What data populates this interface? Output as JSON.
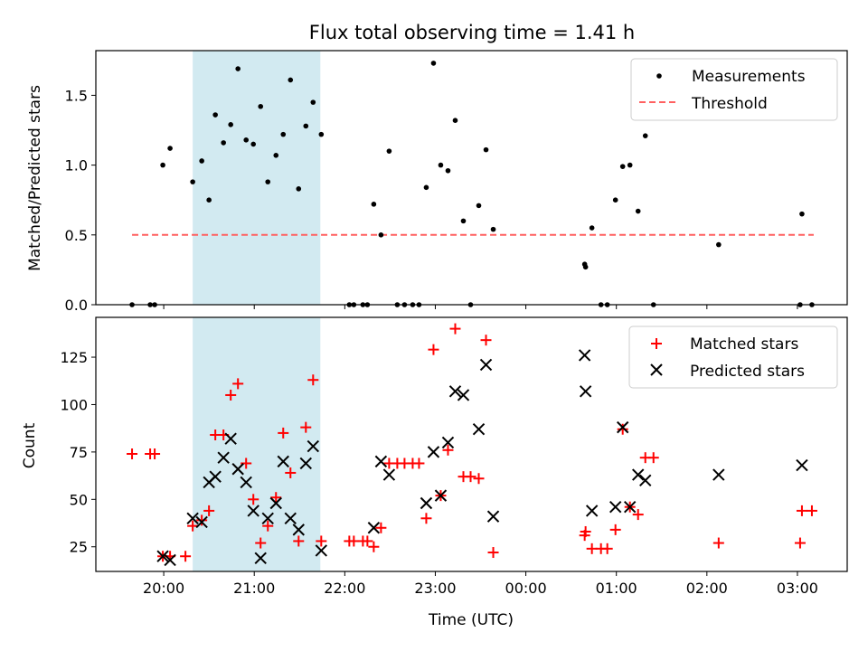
{
  "chart_data": {
    "title": "Flux total observing time = 1.41 h",
    "shaded_region": {
      "x_start_hours": 20.32,
      "x_end_hours": 21.73,
      "color": "#add8e6"
    },
    "x": {
      "label": "Time (UTC)",
      "range_hours": [
        19.25,
        27.55
      ],
      "ticks": [
        {
          "v": 20,
          "label": "20:00"
        },
        {
          "v": 21,
          "label": "21:00"
        },
        {
          "v": 22,
          "label": "22:00"
        },
        {
          "v": 23,
          "label": "23:00"
        },
        {
          "v": 24,
          "label": "00:00"
        },
        {
          "v": 25,
          "label": "01:00"
        },
        {
          "v": 26,
          "label": "02:00"
        },
        {
          "v": 27,
          "label": "03:00"
        }
      ]
    },
    "top": {
      "type": "scatter",
      "ylabel": "Matched/Predicted stars",
      "ylim": [
        0,
        1.82
      ],
      "yticks": [
        {
          "v": 0,
          "label": "0.0"
        },
        {
          "v": 0.5,
          "label": "0.5"
        },
        {
          "v": 1.0,
          "label": "1.0"
        },
        {
          "v": 1.5,
          "label": "1.5"
        }
      ],
      "measurements_label": "Measurements",
      "threshold_label": "Threshold",
      "threshold": {
        "value": 0.5,
        "x_start": 19.65,
        "x_end": 27.18,
        "color": "#ff6060"
      },
      "measurements": [
        [
          19.65,
          0
        ],
        [
          19.85,
          0
        ],
        [
          19.9,
          0
        ],
        [
          19.99,
          1.0
        ],
        [
          20.07,
          1.12
        ],
        [
          20.32,
          0.88
        ],
        [
          20.42,
          1.03
        ],
        [
          20.5,
          0.75
        ],
        [
          20.57,
          1.36
        ],
        [
          20.66,
          1.16
        ],
        [
          20.74,
          1.29
        ],
        [
          20.82,
          1.69
        ],
        [
          20.91,
          1.18
        ],
        [
          20.99,
          1.15
        ],
        [
          21.07,
          1.42
        ],
        [
          21.15,
          0.88
        ],
        [
          21.24,
          1.07
        ],
        [
          21.32,
          1.22
        ],
        [
          21.4,
          1.61
        ],
        [
          21.49,
          0.83
        ],
        [
          21.57,
          1.28
        ],
        [
          21.65,
          1.45
        ],
        [
          21.74,
          1.22
        ],
        [
          22.05,
          0
        ],
        [
          22.1,
          0
        ],
        [
          22.2,
          0
        ],
        [
          22.25,
          0
        ],
        [
          22.32,
          0.72
        ],
        [
          22.4,
          0.5
        ],
        [
          22.49,
          1.1
        ],
        [
          22.58,
          0
        ],
        [
          22.66,
          0
        ],
        [
          22.75,
          0
        ],
        [
          22.82,
          0
        ],
        [
          22.9,
          0.84
        ],
        [
          22.98,
          1.73
        ],
        [
          23.06,
          1.0
        ],
        [
          23.14,
          0.96
        ],
        [
          23.22,
          1.32
        ],
        [
          23.31,
          0.6
        ],
        [
          23.39,
          0
        ],
        [
          23.48,
          0.71
        ],
        [
          23.56,
          1.11
        ],
        [
          23.64,
          0.54
        ],
        [
          24.65,
          0.29
        ],
        [
          24.66,
          0.27
        ],
        [
          24.73,
          0.55
        ],
        [
          24.83,
          0
        ],
        [
          24.9,
          0
        ],
        [
          24.99,
          0.75
        ],
        [
          25.07,
          0.99
        ],
        [
          25.15,
          1.0
        ],
        [
          25.24,
          0.67
        ],
        [
          25.32,
          1.21
        ],
        [
          25.41,
          0
        ],
        [
          26.13,
          0.43
        ],
        [
          27.03,
          0
        ],
        [
          27.05,
          0.65
        ],
        [
          27.16,
          0
        ]
      ]
    },
    "bottom": {
      "type": "scatter",
      "ylabel": "Count",
      "ylim": [
        12,
        146
      ],
      "yticks": [
        {
          "v": 25,
          "label": "25"
        },
        {
          "v": 50,
          "label": "50"
        },
        {
          "v": 75,
          "label": "75"
        },
        {
          "v": 100,
          "label": "100"
        },
        {
          "v": 125,
          "label": "125"
        }
      ],
      "matched_label": "Matched stars",
      "predicted_label": "Predicted stars",
      "matched": [
        [
          19.65,
          74
        ],
        [
          19.85,
          74
        ],
        [
          19.9,
          74
        ],
        [
          19.99,
          20
        ],
        [
          20.07,
          20
        ],
        [
          20.24,
          20
        ],
        [
          20.32,
          36
        ],
        [
          20.42,
          39
        ],
        [
          20.5,
          44
        ],
        [
          20.57,
          84
        ],
        [
          20.66,
          84
        ],
        [
          20.74,
          105
        ],
        [
          20.82,
          111
        ],
        [
          20.91,
          69
        ],
        [
          20.99,
          50
        ],
        [
          21.07,
          27
        ],
        [
          21.15,
          36
        ],
        [
          21.24,
          51
        ],
        [
          21.32,
          85
        ],
        [
          21.4,
          64
        ],
        [
          21.49,
          28
        ],
        [
          21.57,
          88
        ],
        [
          21.65,
          113
        ],
        [
          21.74,
          28
        ],
        [
          22.05,
          28
        ],
        [
          22.1,
          28
        ],
        [
          22.2,
          28
        ],
        [
          22.25,
          28
        ],
        [
          22.32,
          25
        ],
        [
          22.4,
          35
        ],
        [
          22.49,
          69
        ],
        [
          22.58,
          69
        ],
        [
          22.66,
          69
        ],
        [
          22.75,
          69
        ],
        [
          22.82,
          69
        ],
        [
          22.9,
          40
        ],
        [
          22.98,
          129
        ],
        [
          23.06,
          52
        ],
        [
          23.14,
          76
        ],
        [
          23.22,
          140
        ],
        [
          23.31,
          62
        ],
        [
          23.39,
          62
        ],
        [
          23.48,
          61
        ],
        [
          23.56,
          134
        ],
        [
          23.64,
          22
        ],
        [
          24.65,
          31
        ],
        [
          24.66,
          33
        ],
        [
          24.73,
          24
        ],
        [
          24.83,
          24
        ],
        [
          24.9,
          24
        ],
        [
          24.99,
          34
        ],
        [
          25.07,
          87
        ],
        [
          25.15,
          46
        ],
        [
          25.24,
          42
        ],
        [
          25.32,
          72
        ],
        [
          25.41,
          72
        ],
        [
          26.13,
          27
        ],
        [
          27.03,
          27
        ],
        [
          27.05,
          44
        ],
        [
          27.16,
          44
        ]
      ],
      "predicted": [
        [
          19.99,
          20
        ],
        [
          20.07,
          18
        ],
        [
          20.32,
          40
        ],
        [
          20.42,
          38
        ],
        [
          20.5,
          59
        ],
        [
          20.57,
          62
        ],
        [
          20.66,
          72
        ],
        [
          20.74,
          82
        ],
        [
          20.82,
          66
        ],
        [
          20.91,
          59
        ],
        [
          20.99,
          44
        ],
        [
          21.07,
          19
        ],
        [
          21.15,
          40
        ],
        [
          21.24,
          48
        ],
        [
          21.32,
          70
        ],
        [
          21.4,
          40
        ],
        [
          21.49,
          34
        ],
        [
          21.57,
          69
        ],
        [
          21.65,
          78
        ],
        [
          21.74,
          23
        ],
        [
          22.32,
          35
        ],
        [
          22.4,
          70
        ],
        [
          22.49,
          63
        ],
        [
          22.9,
          48
        ],
        [
          22.98,
          75
        ],
        [
          23.06,
          52
        ],
        [
          23.14,
          80
        ],
        [
          23.22,
          107
        ],
        [
          23.31,
          105
        ],
        [
          23.48,
          87
        ],
        [
          23.56,
          121
        ],
        [
          23.64,
          41
        ],
        [
          24.65,
          126
        ],
        [
          24.66,
          107
        ],
        [
          24.73,
          44
        ],
        [
          24.99,
          46
        ],
        [
          25.07,
          88
        ],
        [
          25.15,
          46
        ],
        [
          25.24,
          63
        ],
        [
          25.32,
          60
        ],
        [
          26.13,
          63
        ],
        [
          27.05,
          68
        ]
      ]
    }
  }
}
